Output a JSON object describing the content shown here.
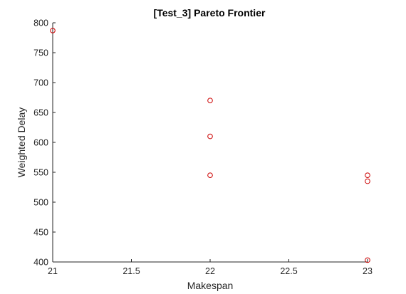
{
  "chart_data": {
    "type": "scatter",
    "title": "[Test_3] Pareto Frontier",
    "xlabel": "Makespan",
    "ylabel": "Weighted Delay",
    "xlim": [
      21,
      23
    ],
    "ylim": [
      400,
      800
    ],
    "xticks": [
      21,
      21.5,
      22,
      22.5,
      23
    ],
    "xtick_labels": [
      "21",
      "21.5",
      "22",
      "22.5",
      "23"
    ],
    "yticks": [
      400,
      450,
      500,
      550,
      600,
      650,
      700,
      750,
      800
    ],
    "ytick_labels": [
      "400",
      "450",
      "500",
      "550",
      "600",
      "650",
      "700",
      "750",
      "800"
    ],
    "grid": false,
    "marker": "circle",
    "marker_color": "#cc0000",
    "series": [
      {
        "points": [
          {
            "x": 21,
            "y": 787
          },
          {
            "x": 22,
            "y": 670
          },
          {
            "x": 22,
            "y": 610
          },
          {
            "x": 22,
            "y": 545
          },
          {
            "x": 23,
            "y": 545
          },
          {
            "x": 23,
            "y": 535
          },
          {
            "x": 23,
            "y": 403
          }
        ]
      }
    ]
  }
}
